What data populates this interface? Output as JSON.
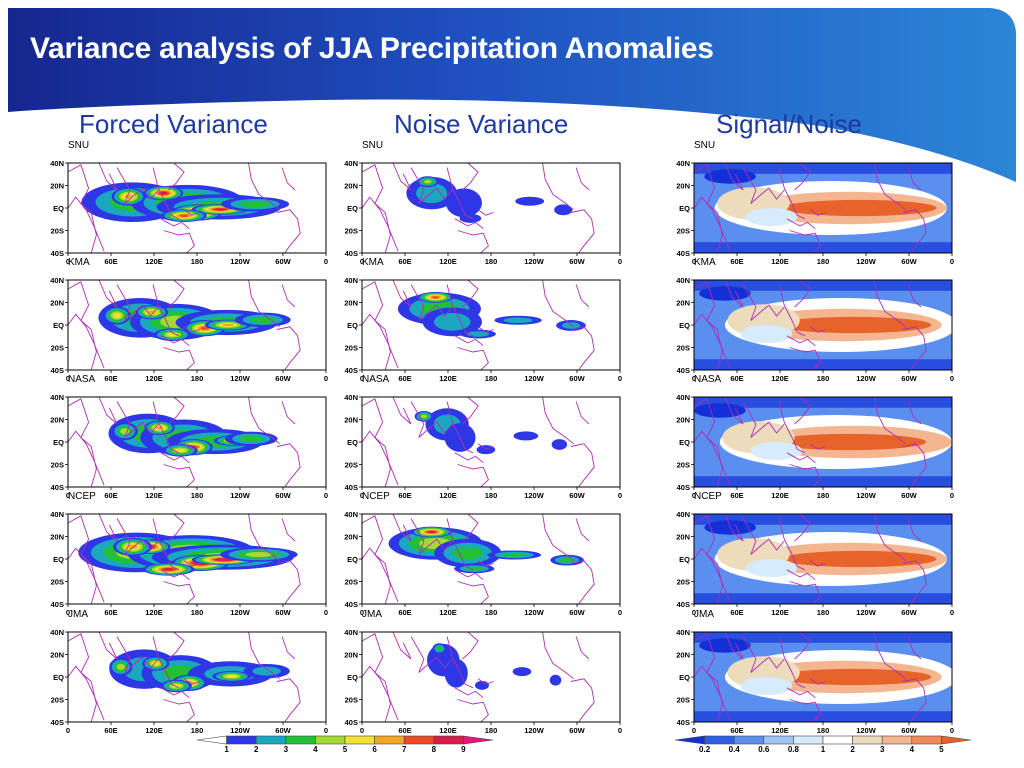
{
  "slide": {
    "title": "Variance analysis of JJA Precipitation Anomalies",
    "columns": [
      "Forced Variance",
      "Noise Variance",
      "Signal/Noise"
    ]
  },
  "models": [
    "SNU",
    "KMA",
    "NASA",
    "NCEP",
    "JMA"
  ],
  "axes": {
    "y_ticks": [
      "40N",
      "20N",
      "EQ",
      "20S",
      "40S"
    ],
    "x_ticks": [
      "0",
      "60E",
      "120E",
      "180",
      "120W",
      "60W",
      "0"
    ]
  },
  "colorbars": {
    "variance": {
      "labels": [
        "1",
        "2",
        "3",
        "4",
        "5",
        "6",
        "7",
        "8",
        "9"
      ],
      "colors": [
        "#ffffff",
        "#2e37e6",
        "#1aa8c0",
        "#22c037",
        "#a4d930",
        "#f0e232",
        "#f5a623",
        "#ee4a23",
        "#d91b4b",
        "#e8157a"
      ]
    },
    "signal_noise": {
      "labels": [
        "0.2",
        "0.4",
        "0.6",
        "0.8",
        "1",
        "2",
        "3",
        "4",
        "5"
      ],
      "colors": [
        "#1330d8",
        "#2c5fe6",
        "#5b8fef",
        "#9cc4f5",
        "#d6ebfb",
        "#ffffff",
        "#ecdcbb",
        "#f4b690",
        "#f08a5a",
        "#e8632c"
      ]
    }
  }
}
